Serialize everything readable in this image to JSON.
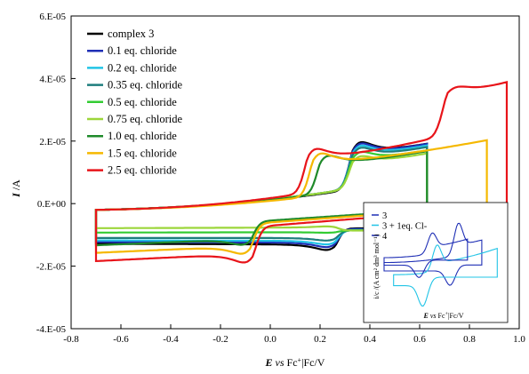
{
  "chart_data": {
    "type": "line",
    "xlabel_main": "E",
    "xlabel_mid": " vs ",
    "xlabel_tail": "Fc",
    "xlabel_sup": "+",
    "xlabel_end": "|Fc/V",
    "ylabel_main": "I",
    "ylabel_tail": " /A",
    "xlim": [
      -0.8,
      1.0
    ],
    "ylim": [
      -4e-05,
      6e-05
    ],
    "x_ticks": [
      "-0.8",
      "-0.6",
      "-0.4",
      "-0.2",
      "0.0",
      "0.2",
      "0.4",
      "0.6",
      "0.8",
      "1.0"
    ],
    "y_ticks": [
      "-4.E-05",
      "-2.E-05",
      "0.E+00",
      "2.E-05",
      "4.E-05",
      "6.E-05"
    ],
    "grid": false,
    "legend_position": "top-left",
    "series": [
      {
        "name": "complex 3",
        "color": "#000000",
        "e_lo": -0.7,
        "e_hi": 0.63,
        "epa": 0.33,
        "ipa": 3.5e-05,
        "epc": 0.26,
        "ipc": -2.15e-05,
        "base_lo": 0.0,
        "base_hi": 1.6e-05,
        "base_c_lo": -7.5e-06,
        "base_c_hi": -8e-06
      },
      {
        "name": "0.1 eq. chloride",
        "color": "#1f2fb5",
        "e_lo": -0.7,
        "e_hi": 0.63,
        "epa": 0.33,
        "ipa": 3.35e-05,
        "epc": 0.26,
        "ipc": -1.95e-05,
        "base_lo": 0.0,
        "base_hi": 1.7e-05,
        "base_c_lo": -7.8e-06,
        "base_c_hi": -8.2e-06
      },
      {
        "name": "0.2 eq. chloride",
        "color": "#22c4e6",
        "e_lo": -0.7,
        "e_hi": 0.63,
        "epa": 0.33,
        "ipa": 3.2e-05,
        "epc": 0.26,
        "ipc": -1.75e-05,
        "base_lo": 0.0,
        "base_hi": 1.7e-05,
        "base_c_lo": -8.2e-06,
        "base_c_hi": -8.5e-06
      },
      {
        "name": "0.35 eq. chloride",
        "color": "#1e7d7d",
        "e_lo": -0.7,
        "e_hi": 0.63,
        "epa": 0.33,
        "ipa": 3.05e-05,
        "epc": 0.26,
        "ipc": -1.5e-05,
        "base_lo": 0.0,
        "base_hi": 1.7e-05,
        "base_c_lo": -8.5e-06,
        "base_c_hi": -8.5e-06
      },
      {
        "name": "0.5 eq. chloride",
        "color": "#33cc33",
        "e_lo": -0.7,
        "e_hi": 0.63,
        "epa": 0.33,
        "ipa": 2.75e-05,
        "epc": 0.26,
        "ipc": -1e-05,
        "base_lo": 0.0,
        "base_hi": 1.7e-05,
        "base_c_lo": -8.8e-06,
        "base_c_hi": -8.5e-06
      },
      {
        "name": "0.75 eq. chloride",
        "color": "#9cd63a",
        "e_lo": -0.7,
        "e_hi": 0.63,
        "epa": 0.33,
        "ipa": 2.45e-05,
        "epc": 0.26,
        "ipc": -6e-06,
        "base_lo": 0.0,
        "base_hi": 1.7e-05,
        "base_c_lo": -9e-06,
        "base_c_hi": -8.5e-06
      },
      {
        "name": "1.0 eq. chloride",
        "color": "#1f8a2a",
        "e_lo": -0.7,
        "e_hi": 0.63,
        "epa": 0.2,
        "ipa": 2.8e-05,
        "epc": -0.08,
        "ipc": -2e-05,
        "base_lo": 0.0,
        "base_hi": 1.6e-05,
        "base_c_lo": -9.2e-06,
        "base_c_hi": -2e-06
      },
      {
        "name": "1.5 eq. chloride",
        "color": "#f5b800",
        "e_lo": -0.7,
        "e_hi": 0.87,
        "epa": 0.17,
        "ipa": 3.1e-05,
        "epc": -0.08,
        "ipc": -2.5e-05,
        "base_lo": 0.0,
        "base_hi": 2.15e-05,
        "base_c_lo": -1e-05,
        "base_c_hi": -1e-06
      },
      {
        "name": "2.5 eq. chloride",
        "color": "#e8141a",
        "e_lo": -0.7,
        "e_hi": 0.95,
        "epa": 0.15,
        "ipa": 3.2e-05,
        "epc": -0.07,
        "ipc": -2.95e-05,
        "base_lo": 0.0,
        "base_hi": 3.5e-05,
        "base_c_lo": -1.15e-05,
        "base_c_hi": -1e-06,
        "epa2": 0.71,
        "ipa2": 4.95e-05
      }
    ],
    "inset": {
      "ylabel": "i/c /(A cm² dm³ mol⁻¹)",
      "xlabel_main": "E",
      "xlabel_mid": " vs ",
      "xlabel_tail": "Fc",
      "xlabel_sup": "+",
      "xlabel_end": "|Fc/V",
      "legend": [
        {
          "label": "3",
          "color": "#1f2fb5"
        },
        {
          "label": "3 + 1eq. Cl-",
          "color": "#22c4e6"
        },
        {
          "label": "4",
          "color": "#1f2fb5"
        }
      ]
    }
  }
}
